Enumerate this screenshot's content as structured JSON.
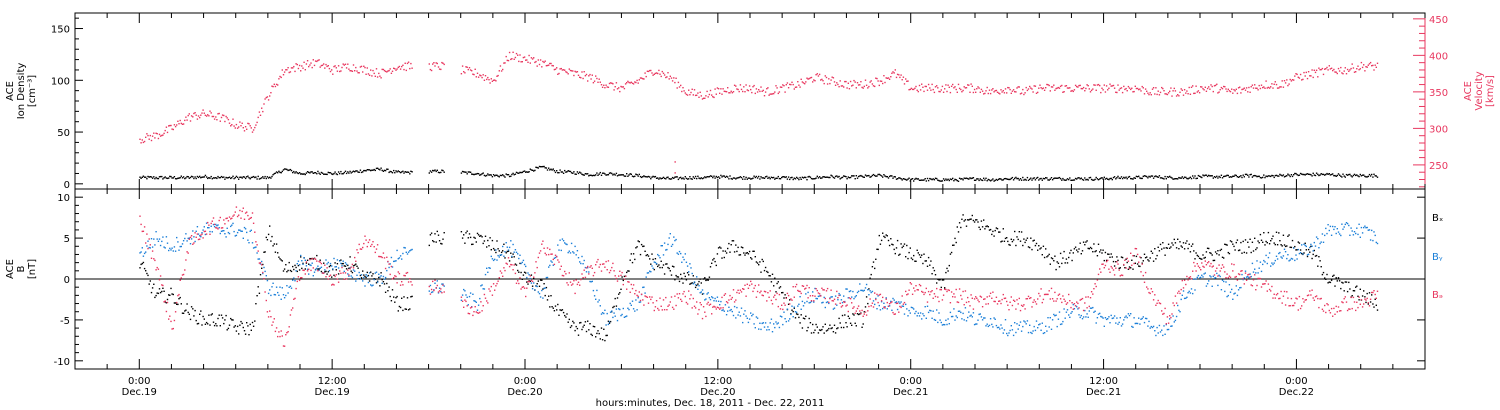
{
  "chart_data": [
    {
      "type": "scatter",
      "panel": "top",
      "ylabel": [
        "ACE",
        "Ion Density",
        "[cm⁻³]"
      ],
      "ylabel_right": [
        "ACE",
        "Velocity",
        "[km/s]"
      ],
      "ylim": [
        -5,
        165
      ],
      "ylim_right": [
        217,
        458
      ],
      "yticks": [
        0,
        50,
        100,
        150
      ],
      "yticks_right": [
        250,
        300,
        350,
        400,
        450
      ],
      "grid": false,
      "series": [
        {
          "axis": "left",
          "color": "#000000",
          "x_hours": [
            0,
            1,
            2,
            3,
            4,
            5,
            6,
            7,
            8,
            9,
            10,
            11,
            12,
            13,
            14,
            15,
            16,
            17,
            18,
            19,
            20,
            21,
            22,
            23,
            24,
            25,
            26,
            27,
            28,
            29,
            30,
            31,
            32,
            33,
            34,
            35,
            36,
            37,
            38,
            39,
            40,
            41,
            42,
            43,
            44,
            45,
            46,
            47,
            48,
            49,
            50,
            51,
            52,
            53,
            54,
            55,
            56,
            57,
            58,
            59,
            60,
            61,
            62,
            63,
            64,
            65,
            66,
            67,
            68,
            69,
            70,
            71,
            72,
            73,
            74,
            75,
            76,
            77
          ],
          "values": [
            6,
            6,
            6,
            6,
            7,
            6,
            6,
            6,
            6,
            14,
            10,
            11,
            10,
            11,
            13,
            14,
            11,
            null,
            12,
            null,
            11,
            10,
            8,
            8,
            12,
            16,
            12,
            11,
            9,
            10,
            9,
            8,
            6,
            5,
            6,
            6,
            7,
            6,
            6,
            6,
            6,
            5,
            6,
            7,
            6,
            7,
            8,
            6,
            4,
            4,
            4,
            4,
            5,
            4,
            5,
            5,
            5,
            5,
            5,
            5,
            5,
            6,
            6,
            7,
            6,
            6,
            7,
            7,
            7,
            8,
            7,
            8,
            9,
            9,
            9,
            8,
            8,
            8
          ]
        },
        {
          "axis": "right",
          "color": "#e8375f",
          "x_hours": [
            0,
            1,
            2,
            3,
            4,
            5,
            6,
            7,
            8,
            9,
            10,
            11,
            12,
            13,
            14,
            15,
            16,
            17,
            18,
            19,
            20,
            21,
            22,
            23,
            24,
            25,
            26,
            27,
            28,
            29,
            30,
            31,
            32,
            33,
            34,
            35,
            36,
            37,
            38,
            39,
            40,
            41,
            42,
            43,
            44,
            45,
            46,
            47,
            48,
            49,
            50,
            51,
            52,
            53,
            54,
            55,
            56,
            57,
            58,
            59,
            60,
            61,
            62,
            63,
            64,
            65,
            66,
            67,
            68,
            69,
            70,
            71,
            72,
            73,
            74,
            75,
            76,
            77
          ],
          "values": [
            285,
            290,
            300,
            315,
            320,
            315,
            305,
            300,
            345,
            380,
            385,
            390,
            380,
            385,
            380,
            375,
            385,
            null,
            385,
            null,
            380,
            375,
            365,
            400,
            395,
            390,
            380,
            375,
            370,
            360,
            355,
            365,
            380,
            370,
            350,
            345,
            350,
            355,
            355,
            350,
            355,
            360,
            370,
            365,
            360,
            360,
            365,
            375,
            355,
            355,
            355,
            355,
            355,
            350,
            355,
            350,
            355,
            355,
            355,
            355,
            355,
            355,
            355,
            350,
            350,
            350,
            355,
            355,
            350,
            355,
            360,
            360,
            370,
            375,
            380,
            380,
            385,
            385
          ]
        }
      ],
      "annotations": [
        {
          "x_hours": 33.3,
          "axis": "right",
          "values": [
            240,
            255
          ]
        }
      ]
    },
    {
      "type": "scatter",
      "panel": "bottom",
      "ylabel": [
        "ACE",
        "B",
        "[nT]"
      ],
      "ylim": [
        -11,
        11
      ],
      "yticks": [
        -10,
        -5,
        0,
        5,
        10
      ],
      "zero_line": true,
      "legend": [
        "Bₓ",
        "Bᵧ",
        "Bₔ"
      ],
      "legend_placement": "right",
      "grid": false,
      "series": [
        {
          "name": "Bx",
          "color": "#000000",
          "x_hours": [
            0,
            1,
            2,
            3,
            4,
            5,
            6,
            7,
            8,
            9,
            10,
            11,
            12,
            13,
            14,
            15,
            16,
            17,
            18,
            19,
            20,
            21,
            22,
            23,
            24,
            25,
            26,
            27,
            28,
            29,
            30,
            31,
            32,
            33,
            34,
            35,
            36,
            37,
            38,
            39,
            40,
            41,
            42,
            43,
            44,
            45,
            46,
            47,
            48,
            49,
            50,
            51,
            52,
            53,
            54,
            55,
            56,
            57,
            58,
            59,
            60,
            61,
            62,
            63,
            64,
            65,
            66,
            67,
            68,
            69,
            70,
            71,
            72,
            73,
            74,
            75,
            76,
            77
          ],
          "values": [
            2,
            -2,
            -2,
            -4,
            -5,
            -5,
            -6,
            -6,
            6,
            1,
            2,
            2,
            1,
            2,
            0,
            0,
            -3,
            null,
            5,
            null,
            5,
            5,
            4,
            3,
            0,
            -1,
            -4,
            -6,
            -6,
            -7,
            0,
            4,
            2,
            1,
            0,
            -1,
            3,
            4,
            3,
            1,
            -2,
            -5,
            -6,
            -6,
            -5,
            -5,
            5,
            4,
            3,
            2,
            -1,
            7,
            7,
            6,
            5,
            5,
            4,
            2,
            3,
            4,
            3,
            2,
            2,
            3,
            4,
            4,
            3,
            3,
            4,
            4,
            5,
            5,
            4,
            3,
            0,
            -1,
            -2,
            -3
          ]
        },
        {
          "name": "By",
          "color": "#1b7fd8",
          "x_hours": [
            0,
            1,
            2,
            3,
            4,
            5,
            6,
            7,
            8,
            9,
            10,
            11,
            12,
            13,
            14,
            15,
            16,
            17,
            18,
            19,
            20,
            21,
            22,
            23,
            24,
            25,
            26,
            27,
            28,
            29,
            30,
            31,
            32,
            33,
            34,
            35,
            36,
            37,
            38,
            39,
            40,
            41,
            42,
            43,
            44,
            45,
            46,
            47,
            48,
            49,
            50,
            51,
            52,
            53,
            54,
            55,
            56,
            57,
            58,
            59,
            60,
            61,
            62,
            63,
            64,
            65,
            66,
            67,
            68,
            69,
            70,
            71,
            72,
            73,
            74,
            75,
            76,
            77
          ],
          "values": [
            3,
            5,
            4,
            5,
            6,
            6,
            6,
            5,
            -1,
            -2,
            2,
            1,
            2,
            1,
            0,
            0,
            3,
            null,
            -1,
            null,
            -2,
            -3,
            3,
            4,
            1,
            -2,
            4,
            4,
            0,
            -5,
            -4,
            -3,
            2,
            5,
            2,
            -2,
            -3,
            -4,
            -5,
            -6,
            -5,
            -3,
            -2,
            -3,
            -2,
            -1,
            -3,
            -3,
            -4,
            -4,
            -5,
            -4,
            -5,
            -5,
            -6,
            -6,
            -6,
            -5,
            -4,
            -4,
            -5,
            -5,
            -5,
            -6,
            -6,
            -2,
            0,
            0,
            -2,
            1,
            2,
            3,
            3,
            4,
            6,
            6,
            6,
            5
          ]
        },
        {
          "name": "Bz",
          "color": "#e8375f",
          "x_hours": [
            0,
            1,
            2,
            3,
            4,
            5,
            6,
            7,
            8,
            9,
            10,
            11,
            12,
            13,
            14,
            15,
            16,
            17,
            18,
            19,
            20,
            21,
            22,
            23,
            24,
            25,
            26,
            27,
            28,
            29,
            30,
            31,
            32,
            33,
            34,
            35,
            36,
            37,
            38,
            39,
            40,
            41,
            42,
            43,
            44,
            45,
            46,
            47,
            48,
            49,
            50,
            51,
            52,
            53,
            54,
            55,
            56,
            57,
            58,
            59,
            60,
            61,
            62,
            63,
            64,
            65,
            66,
            67,
            68,
            69,
            70,
            71,
            72,
            73,
            74,
            75,
            76,
            77
          ],
          "values": [
            7,
            2,
            -6,
            4,
            6,
            7,
            8,
            8,
            -4,
            -8,
            1,
            2,
            0,
            1,
            5,
            3,
            0,
            null,
            -1,
            null,
            -3,
            -4,
            -1,
            2,
            -2,
            4,
            2,
            -1,
            1,
            2,
            0,
            -2,
            -3,
            -3,
            -2,
            -4,
            -3,
            -2,
            -1,
            -2,
            -3,
            -1,
            -2,
            -2,
            -3,
            -4,
            -2,
            -4,
            -1,
            -2,
            -2,
            -2,
            -3,
            -2,
            -3,
            -3,
            -2,
            -2,
            -3,
            -3,
            2,
            1,
            3,
            -2,
            -5,
            0,
            2,
            1,
            1,
            0,
            -1,
            -2,
            -3,
            -2,
            -4,
            -3,
            -3,
            -2
          ]
        }
      ]
    }
  ],
  "xaxis": {
    "tick_labels": [
      {
        "time": "0:00",
        "date": "Dec.19"
      },
      {
        "time": "12:00",
        "date": "Dec.19"
      },
      {
        "time": "0:00",
        "date": "Dec.20"
      },
      {
        "time": "12:00",
        "date": "Dec.20"
      },
      {
        "time": "0:00",
        "date": "Dec.21"
      },
      {
        "time": "12:00",
        "date": "Dec.21"
      },
      {
        "time": "0:00",
        "date": "Dec.22"
      }
    ],
    "tick_hours": [
      0,
      12,
      24,
      36,
      48,
      60,
      72
    ],
    "xlim_hours": [
      -4,
      80
    ],
    "label": "hours:minutes, Dec. 18, 2011 - Dec. 22, 2011"
  }
}
